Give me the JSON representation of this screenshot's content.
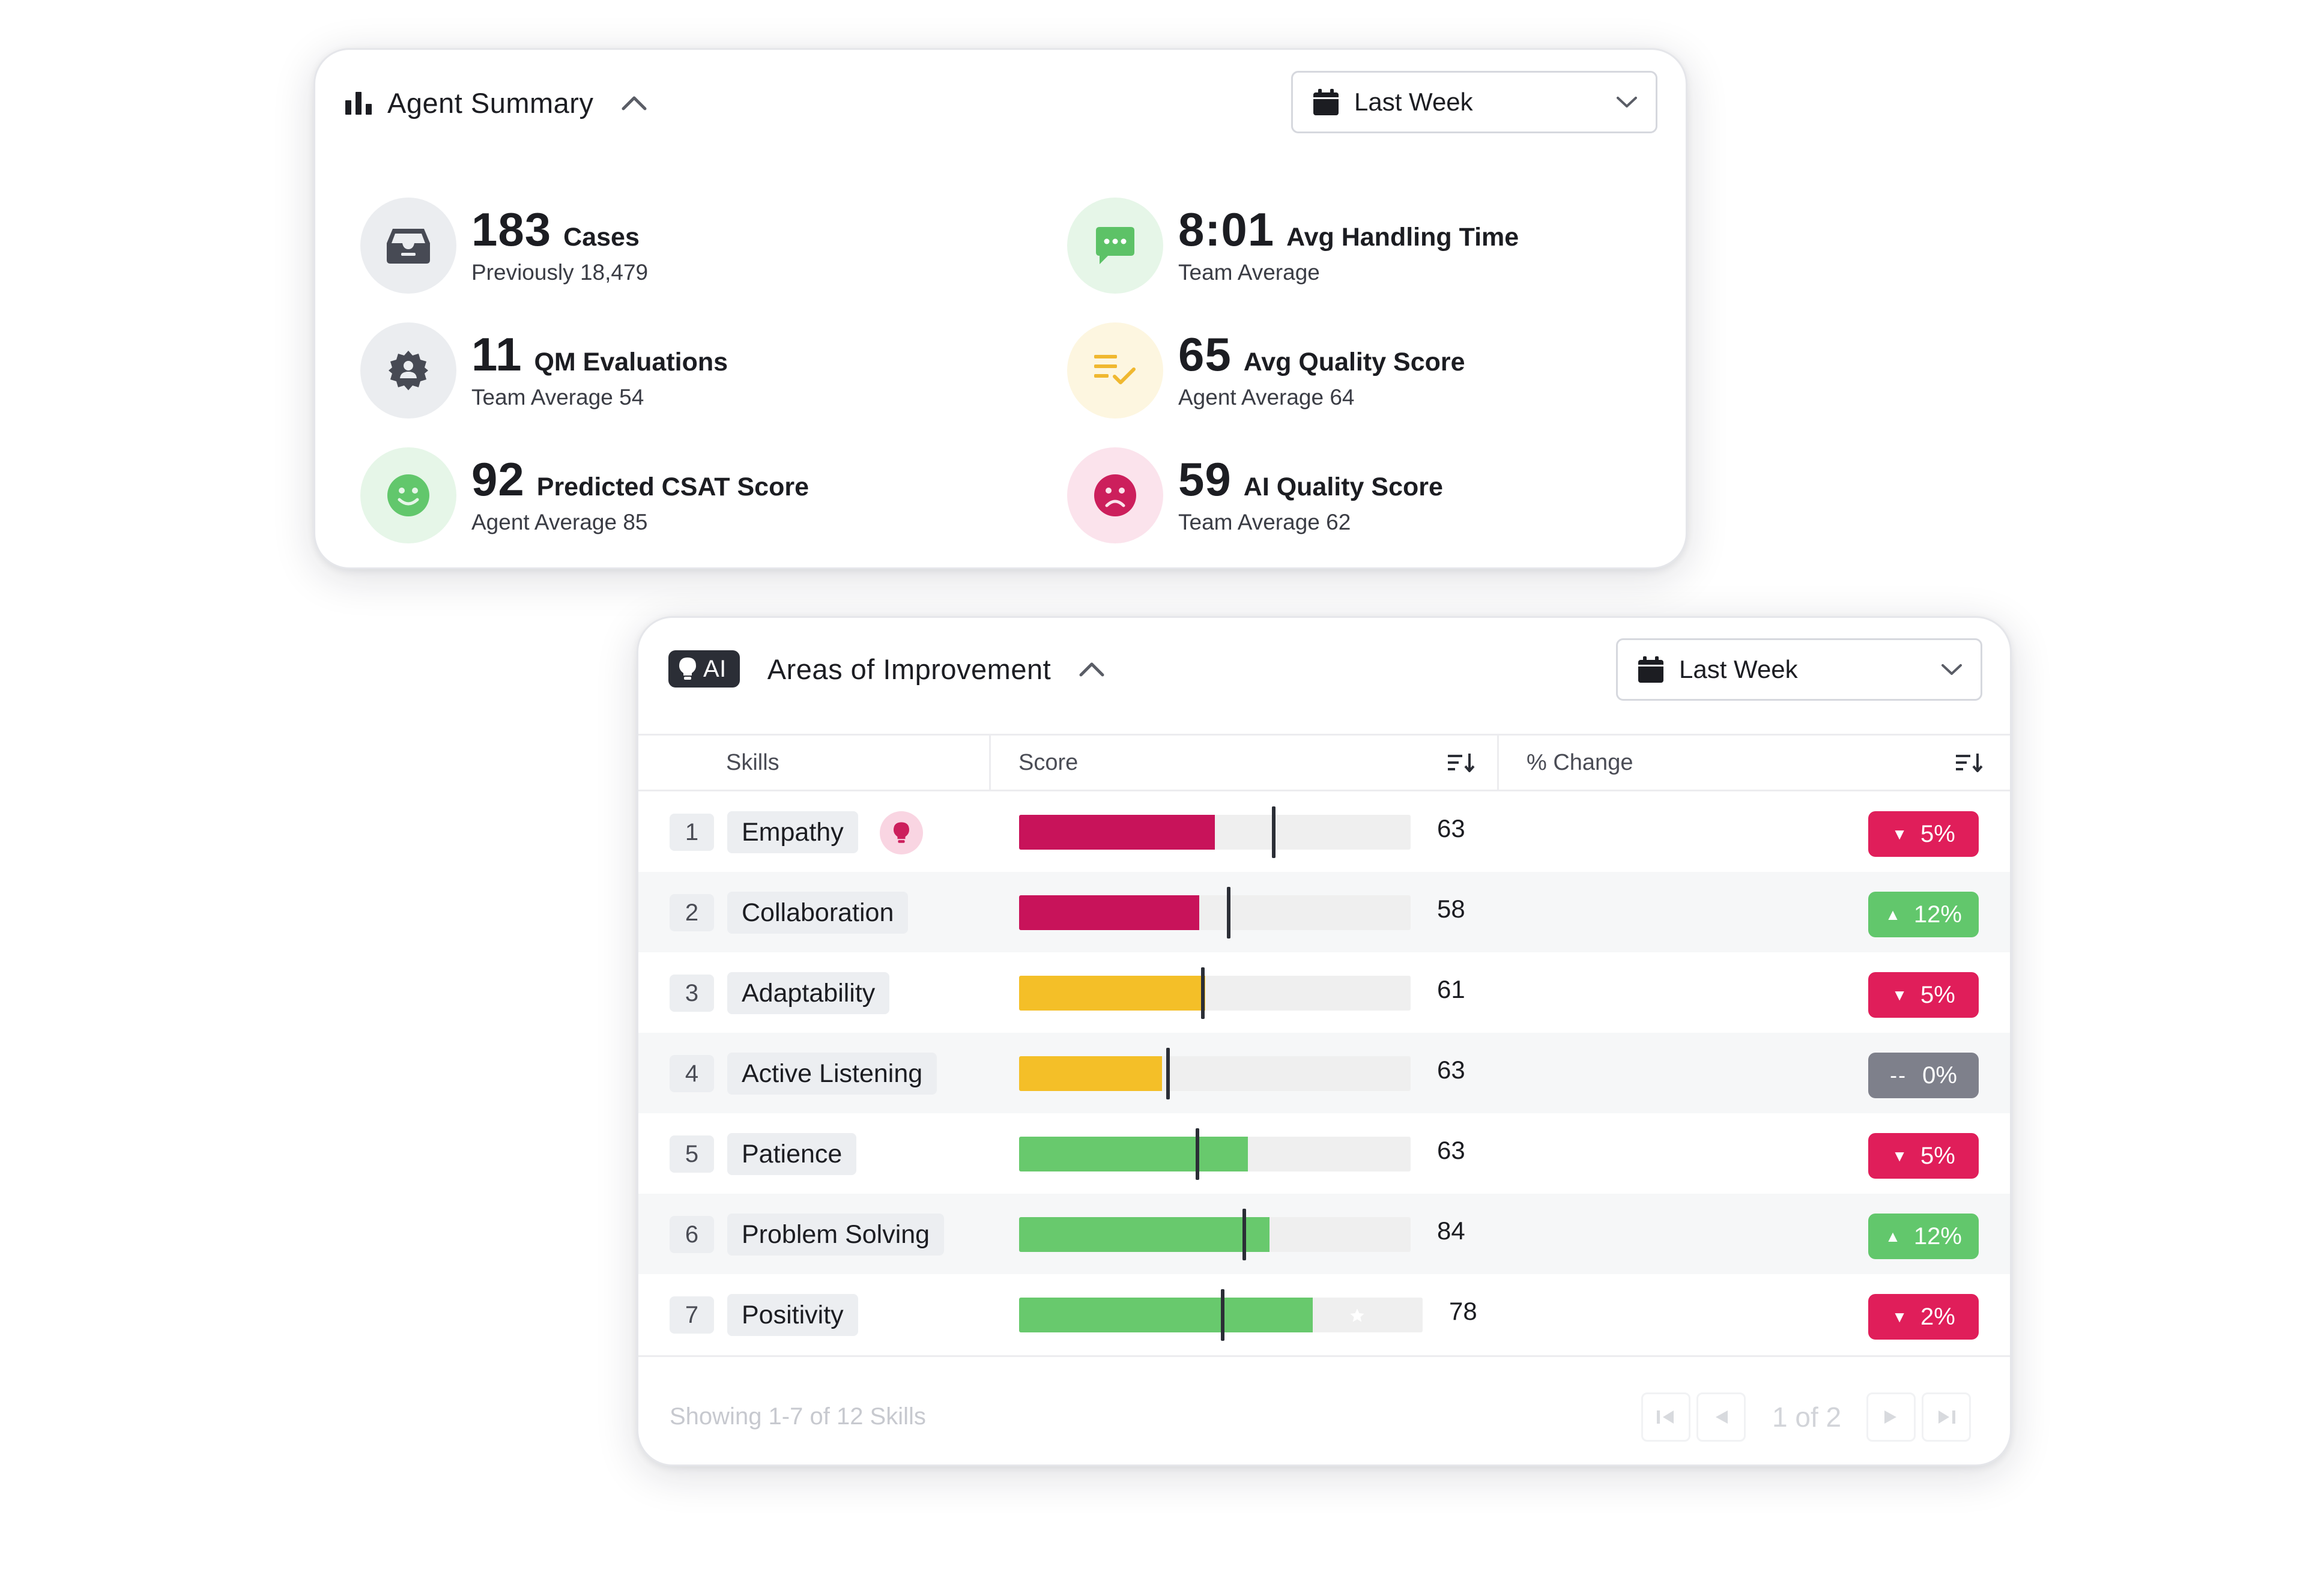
{
  "summary": {
    "title": "Agent Summary",
    "period": "Last Week",
    "metrics": [
      {
        "value": "183",
        "label": "Cases",
        "sub": "Previously 18,479",
        "icon": "inbox-icon",
        "bg": "#ebedf0",
        "fg": "#474a54"
      },
      {
        "value": "8:01",
        "label": "Avg Handling Time",
        "sub": "Team Average",
        "icon": "chat-bubble-icon",
        "bg": "#e6f6e8",
        "fg": "#5dc267"
      },
      {
        "value": "11",
        "label": "QM Evaluations",
        "sub": "Team Average 54",
        "icon": "user-badge-icon",
        "bg": "#ebedf0",
        "fg": "#474a54"
      },
      {
        "value": "65",
        "label": "Avg Quality Score",
        "sub": "Agent Average 64",
        "icon": "checklist-icon",
        "bg": "#fdf6e0",
        "fg": "#f0b830"
      },
      {
        "value": "92",
        "label": "Predicted CSAT Score",
        "sub": "Agent Average 85",
        "icon": "smile-icon",
        "bg": "#e6f6e8",
        "fg": "#62c76c"
      },
      {
        "value": "59",
        "label": "AI Quality Score",
        "sub": "Team Average 62",
        "icon": "frown-icon",
        "bg": "#fbe3ec",
        "fg": "#cc1f5c"
      }
    ]
  },
  "aoi": {
    "badge": "AI",
    "title": "Areas of Improvement",
    "period": "Last Week",
    "columns": {
      "skills": "Skills",
      "score": "Score",
      "change": "% Change"
    },
    "rows": [
      {
        "rank": "1",
        "skill": "Empathy",
        "score": "63",
        "fill": 0.5,
        "marker": 0.65,
        "color": "#c8135a",
        "change": "5%",
        "direction": "down",
        "tip": true
      },
      {
        "rank": "2",
        "skill": "Collaboration",
        "score": "58",
        "fill": 0.46,
        "marker": 0.535,
        "color": "#c8135a",
        "change": "12%",
        "direction": "up"
      },
      {
        "rank": "3",
        "skill": "Adaptability",
        "score": "61",
        "fill": 0.475,
        "marker": 0.47,
        "color": "#f4bf28",
        "change": "5%",
        "direction": "down"
      },
      {
        "rank": "4",
        "skill": "Active Listening",
        "score": "63",
        "fill": 0.365,
        "marker": 0.38,
        "color": "#f4bf28",
        "change": "0%",
        "direction": "flat"
      },
      {
        "rank": "5",
        "skill": "Patience",
        "score": "63",
        "fill": 0.585,
        "marker": 0.455,
        "color": "#68c96d",
        "change": "5%",
        "direction": "down"
      },
      {
        "rank": "6",
        "skill": "Problem Solving",
        "score": "84",
        "fill": 0.64,
        "marker": 0.575,
        "color": "#68c96d",
        "change": "12%",
        "direction": "up"
      },
      {
        "rank": "7",
        "skill": "Positivity",
        "score": "78",
        "fill": 0.75,
        "marker": 0.52,
        "color": "#68c96d",
        "change": "2%",
        "direction": "down",
        "star": true
      }
    ],
    "change_colors": {
      "down": "#e01e5a",
      "up": "#62c76c",
      "flat": "#7e808b"
    },
    "footer": "Showing 1-7 of 12 Skills",
    "pager": "1 of 2"
  }
}
